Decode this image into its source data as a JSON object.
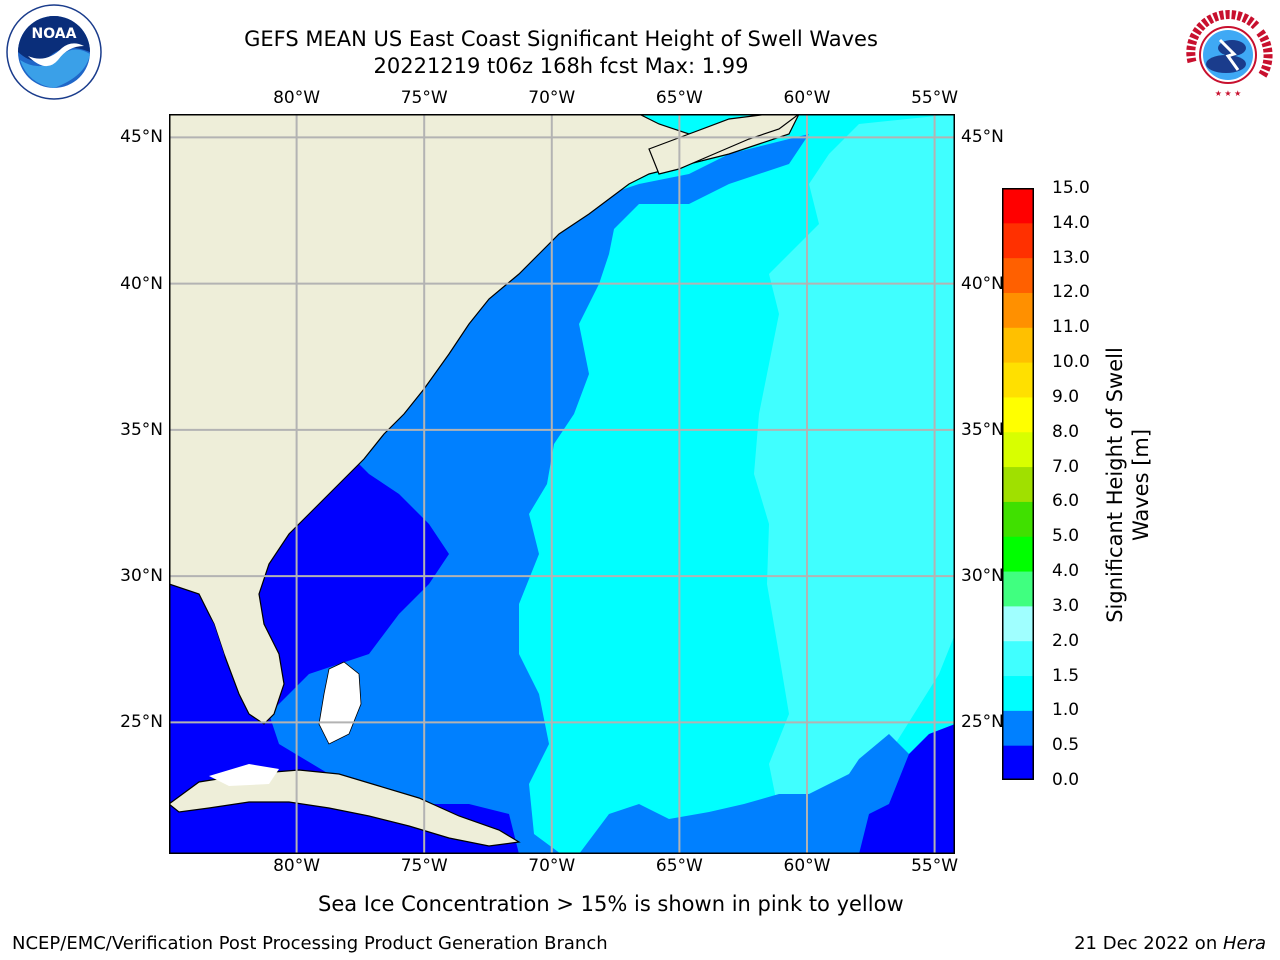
{
  "title": {
    "line1": "GEFS MEAN US East Coast Significant Height of Swell Waves",
    "line2": "20221219 t06z 168h fcst   Max: 1.99"
  },
  "logos": {
    "left": {
      "name": "noaa-logo",
      "text": "NOAA"
    },
    "right": {
      "name": "national-weather-service-logo",
      "text": "NATIONAL WEATHER SERVICE"
    }
  },
  "map": {
    "lon_ticks": [
      "80°W",
      "75°W",
      "70°W",
      "65°W",
      "60°W",
      "55°W"
    ],
    "lat_ticks": [
      "45°N",
      "40°N",
      "35°N",
      "30°N",
      "25°N"
    ],
    "lon_values": [
      -80,
      -75,
      -70,
      -65,
      -60,
      -55
    ],
    "lat_values": [
      45,
      40,
      35,
      30,
      25
    ],
    "lon_range": [
      -85,
      -54.2
    ],
    "lat_range": [
      20.5,
      45.8
    ],
    "land_color": "#eeeed9",
    "grid_color": "#b3b3b3"
  },
  "colorbar": {
    "label": "Significant Height of Swell Waves [m]",
    "label_line1": "Significant Height of Swell",
    "label_line2": "Waves [m]",
    "levels": [
      "0.0",
      "0.5",
      "1.0",
      "1.5",
      "2.0",
      "3.0",
      "4.0",
      "5.0",
      "6.0",
      "7.0",
      "8.0",
      "9.0",
      "10.0",
      "11.0",
      "12.0",
      "13.0",
      "14.0",
      "15.0"
    ],
    "colors": [
      "#0000ff",
      "#0080ff",
      "#00ffff",
      "#40ffff",
      "#a0ffff",
      "#40ff80",
      "#00ff00",
      "#40e000",
      "#a0e000",
      "#d8ff00",
      "#ffff00",
      "#ffe000",
      "#ffc000",
      "#ff9000",
      "#ff6000",
      "#ff3000",
      "#ff0000"
    ]
  },
  "note": "Sea Ice Concentration > 15% is shown in pink to yellow",
  "footer": {
    "left": "NCEP/EMC/Verification Post Processing Product Generation Branch",
    "right_date": "21 Dec 2022 on ",
    "right_machine": "Hera"
  }
}
